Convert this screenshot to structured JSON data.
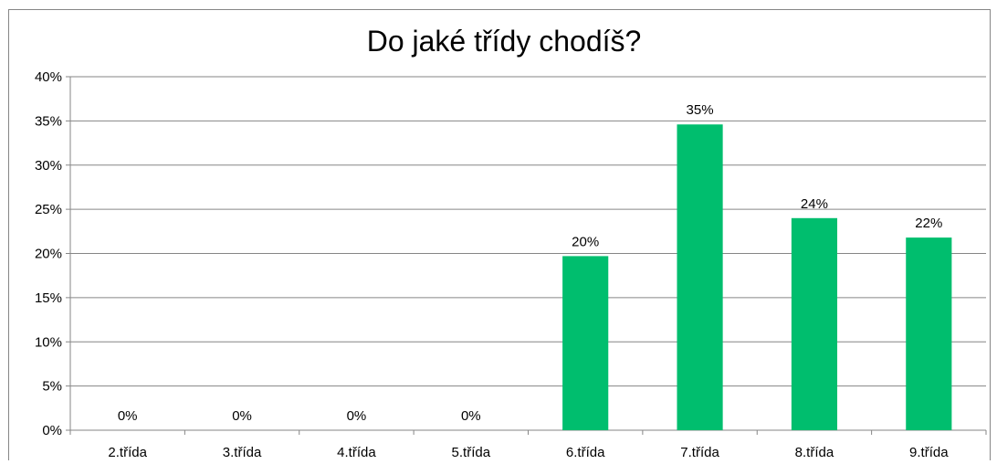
{
  "chart_data": {
    "type": "bar",
    "title": "Do jaké třídy chodíš?",
    "xlabel": "",
    "ylabel": "",
    "categories": [
      "2.třída",
      "3.třída",
      "4.třída",
      "5.třída",
      "6.třída",
      "7.třída",
      "8.třída",
      "9.třída"
    ],
    "values": [
      0,
      0,
      0,
      0,
      19.7,
      34.6,
      24.0,
      21.8
    ],
    "data_labels": [
      "0%",
      "0%",
      "0%",
      "0%",
      "20%",
      "35%",
      "24%",
      "22%"
    ],
    "yticks": [
      "0%",
      "5%",
      "10%",
      "15%",
      "20%",
      "25%",
      "30%",
      "35%",
      "40%"
    ],
    "ylim": [
      0,
      40
    ],
    "grid": true,
    "legend": "none",
    "bar_color": "#00BE6E"
  }
}
